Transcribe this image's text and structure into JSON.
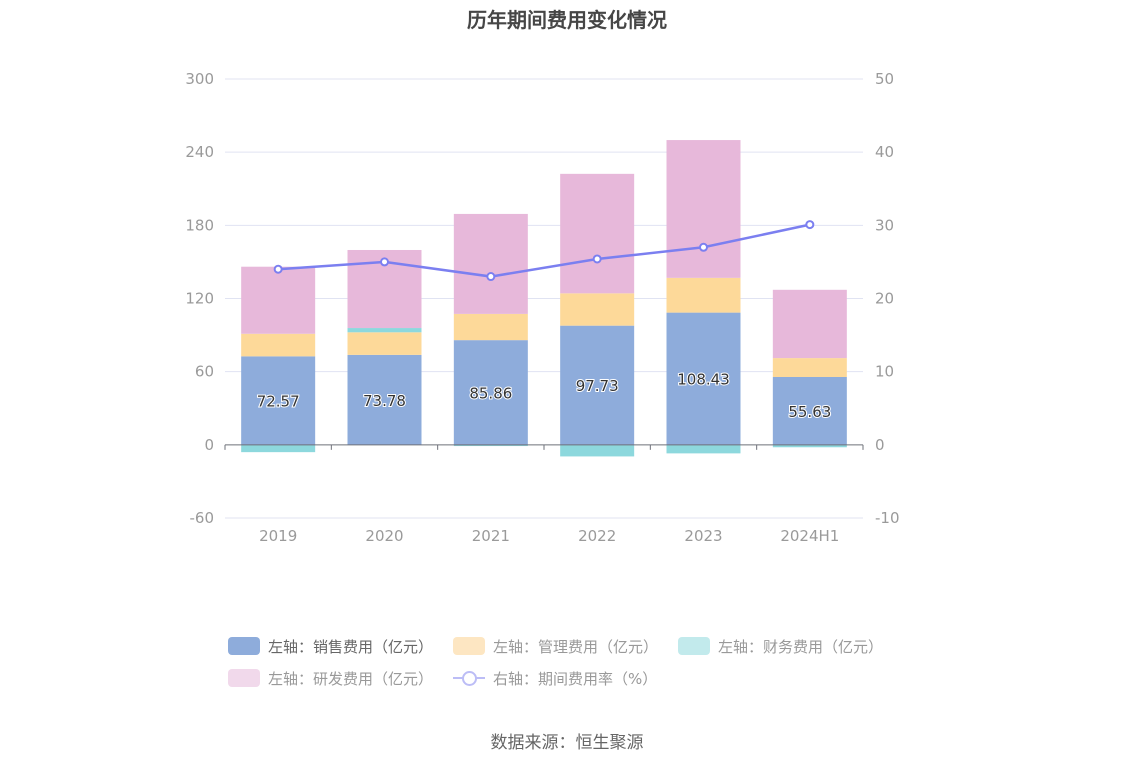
{
  "title": "历年期间费用变化情况",
  "source": "数据来源：恒生聚源",
  "chart_data": {
    "type": "bar",
    "stacked": true,
    "categories": [
      "2019",
      "2020",
      "2021",
      "2022",
      "2023",
      "2024H1"
    ],
    "left_axis": {
      "ylim": [
        -60,
        300
      ],
      "ticks": [
        "300",
        "240",
        "180",
        "120",
        "60",
        "0",
        "-60"
      ]
    },
    "right_axis": {
      "ylim": [
        -10,
        50
      ],
      "ticks": [
        "50",
        "40",
        "30",
        "20",
        "10",
        "0",
        "-10"
      ]
    },
    "grid": true,
    "legend_position": "bottom",
    "series": [
      {
        "name": "左轴：销售费用（亿元）",
        "axis": "left",
        "color": "#8eacdb",
        "values": [
          72.57,
          73.78,
          85.86,
          97.73,
          108.43,
          55.63
        ]
      },
      {
        "name": "左轴：管理费用（亿元）",
        "axis": "left",
        "color": "#fdd999",
        "values": [
          18.5,
          18.5,
          21.5,
          26.5,
          28.5,
          15.5
        ]
      },
      {
        "name": "左轴：财务费用（亿元）",
        "axis": "left",
        "color": "#8dd8dd",
        "values": [
          -6,
          3.5,
          -1,
          -9.5,
          -7,
          -2
        ]
      },
      {
        "name": "左轴：研发费用（亿元）",
        "axis": "left",
        "color": "#e7b8da",
        "values": [
          55,
          64,
          82,
          98,
          113,
          56
        ]
      },
      {
        "name": "右轴：期间费用率（%）",
        "axis": "right",
        "type": "line",
        "color": "#7b7ff0",
        "values": [
          24.0,
          25.0,
          23.0,
          25.4,
          27.0,
          30.1
        ]
      }
    ],
    "data_labels": [
      "72.57",
      "73.78",
      "85.86",
      "97.73",
      "108.43",
      "55.63"
    ]
  }
}
